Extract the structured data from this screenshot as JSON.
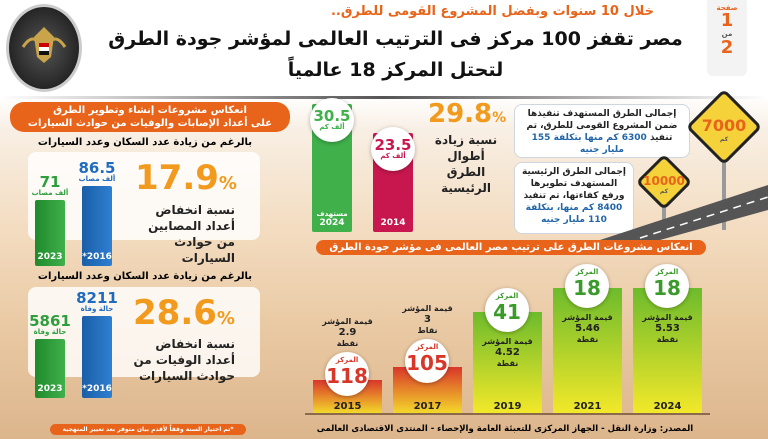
{
  "header": {
    "subtitle": "خلال 10 سنوات وبفضل المشروع القومى للطرق..",
    "title_line1": "مصر تقفز 100 مركز فى الترتيب العالمى لمؤشر جودة الطرق",
    "title_line2": "لتحتل المركز 18 عالمياً",
    "page_label": "صفحة",
    "page_current": "1",
    "page_of": "من",
    "page_total": "2",
    "logo_text": "المركز الإعلامي - رئاسة مجلس الوزراء - جمهورية مصر العربية"
  },
  "accidents": {
    "header_line1": "انعكاس مشروعات إنشاء وتطوير الطرق",
    "header_line2": "على أعداد الإصابات والوفيات من حوادث السيارات",
    "injuries": {
      "note": "بالرغم من زيادة عدد السكان وعدد السيارات",
      "pct": "17.9",
      "pct_sign": "%",
      "desc": "نسبة انخفاض أعداد المصابين من حوادث السيارات"
    },
    "deaths": {
      "note": "بالرغم من زيادة عدد السكان وعدد السيارات",
      "pct": "28.6",
      "pct_sign": "%",
      "desc": "نسبة انخفاض أعداد الوفيات من حوادث السيارات"
    },
    "footnote": "*تم اختيار السنة وفقاً لأقدم بيان متوفر بعد تغيير المنهجية"
  },
  "roads": {
    "pct": "29.8",
    "pct_sign": "%",
    "desc": "نسبة زيادة أطوال الطرق الرئيسية",
    "target_label": "مستهدف",
    "box1_text": "إجمالى الطرق المستهدف تنفيذها ضمن المشروع القومى للطرق، تم تنفيذ",
    "box1_hl": "6300 كم منها بتكلفة 155 مليار جنيه",
    "sign1": "7000",
    "box2_text": "إجمالى الطرق الرئيسية المستهدف تطويرها ورفع كفاءتها، تم تنفيذ",
    "box2_hl": "8400 كم منها، بتكلفة 110 مليار جنيه",
    "sign2": "10000",
    "sign_unit": "كم"
  },
  "ranking": {
    "header": "انعكاس مشروعات الطرق على ترتيب مصر العالمى فى مؤشر جودة الطرق",
    "rank_label": "المركز",
    "index_label": "قيمة المؤشر"
  },
  "source": "المصدر: وزارة النقل - الجهاز المركزى للتعبئة العامة والإحصاء - المنتدى الاقتصادى العالمى",
  "colors": {
    "accent": "#e8641b",
    "green": "#2e9e3c",
    "blue": "#1f6bbf",
    "pink": "#c8174f",
    "gold": "#f29a1d"
  },
  "chart_data": [
    {
      "type": "bar",
      "title": "",
      "categories": [
        "2023",
        "*2016"
      ],
      "values": [
        71,
        86.5
      ],
      "unit": "ألف مصاب",
      "colors": [
        "#2e9e3c",
        "#1f6bbf"
      ]
    },
    {
      "type": "bar",
      "title": "",
      "categories": [
        "2023",
        "*2016"
      ],
      "values": [
        5861,
        8211
      ],
      "unit": "حالة وفاة",
      "colors": [
        "#2e9e3c",
        "#1f6bbf"
      ]
    },
    {
      "type": "bar",
      "title": "",
      "categories": [
        "2024",
        "2014"
      ],
      "values": [
        30.5,
        23.5
      ],
      "unit": "ألف كم",
      "colors": [
        "#3fb04a",
        "#c8174f"
      ]
    },
    {
      "type": "bar",
      "title": "",
      "categories": [
        "2015",
        "2017",
        "2019",
        "2021",
        "2024"
      ],
      "rank": [
        118,
        105,
        41,
        18,
        18
      ],
      "index_values": [
        "2.9",
        "3",
        "4.52",
        "5.46",
        "5.53"
      ],
      "index_units": [
        "نقطة",
        "نقاط",
        "نقطة",
        "نقطة",
        "نقطة"
      ]
    }
  ]
}
